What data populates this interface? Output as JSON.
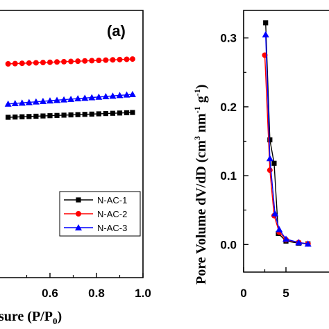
{
  "chart_data": [
    {
      "type": "line",
      "panel_label": "(a)",
      "xlabel_visible": "sure (P/P",
      "xlabel_sub": "0",
      "xlabel_close": ")",
      "xlim": [
        0.4,
        1.0
      ],
      "x_ticks": [
        "0.6",
        "0.8",
        "1.0"
      ],
      "grid": false,
      "legend_position": "bottom-right",
      "series": [
        {
          "name": "N-AC-1",
          "color": "#000000",
          "marker": "square",
          "x": [
            0.42,
            0.45,
            0.48,
            0.51,
            0.54,
            0.57,
            0.6,
            0.63,
            0.66,
            0.69,
            0.72,
            0.75,
            0.78,
            0.81,
            0.84,
            0.87,
            0.9,
            0.93,
            0.955
          ],
          "level": [
            0.6,
            0.601,
            0.602,
            0.603,
            0.604,
            0.605,
            0.606,
            0.607,
            0.608,
            0.609,
            0.61,
            0.611,
            0.612,
            0.613,
            0.614,
            0.615,
            0.616,
            0.617,
            0.618
          ]
        },
        {
          "name": "N-AC-2",
          "color": "#ff0000",
          "marker": "circle",
          "x": [
            0.42,
            0.45,
            0.48,
            0.51,
            0.54,
            0.57,
            0.6,
            0.63,
            0.66,
            0.69,
            0.72,
            0.75,
            0.78,
            0.81,
            0.84,
            0.87,
            0.9,
            0.93,
            0.955
          ],
          "level": [
            0.8,
            0.801,
            0.802,
            0.803,
            0.804,
            0.805,
            0.806,
            0.807,
            0.808,
            0.809,
            0.81,
            0.811,
            0.812,
            0.813,
            0.814,
            0.815,
            0.816,
            0.817,
            0.818
          ]
        },
        {
          "name": "N-AC-3",
          "color": "#0000ff",
          "marker": "triangle",
          "x": [
            0.42,
            0.45,
            0.48,
            0.51,
            0.54,
            0.57,
            0.6,
            0.63,
            0.66,
            0.69,
            0.72,
            0.75,
            0.78,
            0.81,
            0.84,
            0.87,
            0.9,
            0.93,
            0.955
          ],
          "level": [
            0.65,
            0.652,
            0.654,
            0.656,
            0.658,
            0.66,
            0.662,
            0.664,
            0.666,
            0.668,
            0.67,
            0.672,
            0.674,
            0.676,
            0.678,
            0.68,
            0.682,
            0.684,
            0.686
          ]
        }
      ]
    },
    {
      "type": "line",
      "ylabel_prefix": "Pore Volume dV/dD (cm",
      "ylabel_sup1": "3",
      "ylabel_mid": " nm",
      "ylabel_sup2": "-1",
      "ylabel_mid2": " g",
      "ylabel_sup3": "-1",
      "ylabel_suffix": ")",
      "xlim": [
        0,
        8
      ],
      "ylim": [
        -0.04,
        0.34
      ],
      "x_ticks": [
        "0",
        "5"
      ],
      "y_ticks": [
        "0.0",
        "0.1",
        "0.2",
        "0.3"
      ],
      "grid": false,
      "series": [
        {
          "name": "N-AC-1",
          "color": "#000000",
          "marker": "square",
          "x": [
            2.6,
            3.1,
            3.6,
            4.1,
            5.0,
            6.5,
            7.6
          ],
          "y": [
            0.322,
            0.152,
            0.118,
            0.016,
            0.005,
            0.002,
            0.001
          ]
        },
        {
          "name": "N-AC-2",
          "color": "#ff0000",
          "marker": "circle",
          "x": [
            2.5,
            3.1,
            3.6,
            4.2,
            5.0,
            6.5,
            7.6
          ],
          "y": [
            0.275,
            0.108,
            0.042,
            0.018,
            0.007,
            0.003,
            0.001
          ]
        },
        {
          "name": "N-AC-3",
          "color": "#0000ff",
          "marker": "triangle",
          "x": [
            2.6,
            3.1,
            3.7,
            4.2,
            5.0,
            6.5,
            7.6
          ],
          "y": [
            0.305,
            0.125,
            0.045,
            0.022,
            0.008,
            0.003,
            0.001
          ]
        }
      ]
    }
  ]
}
